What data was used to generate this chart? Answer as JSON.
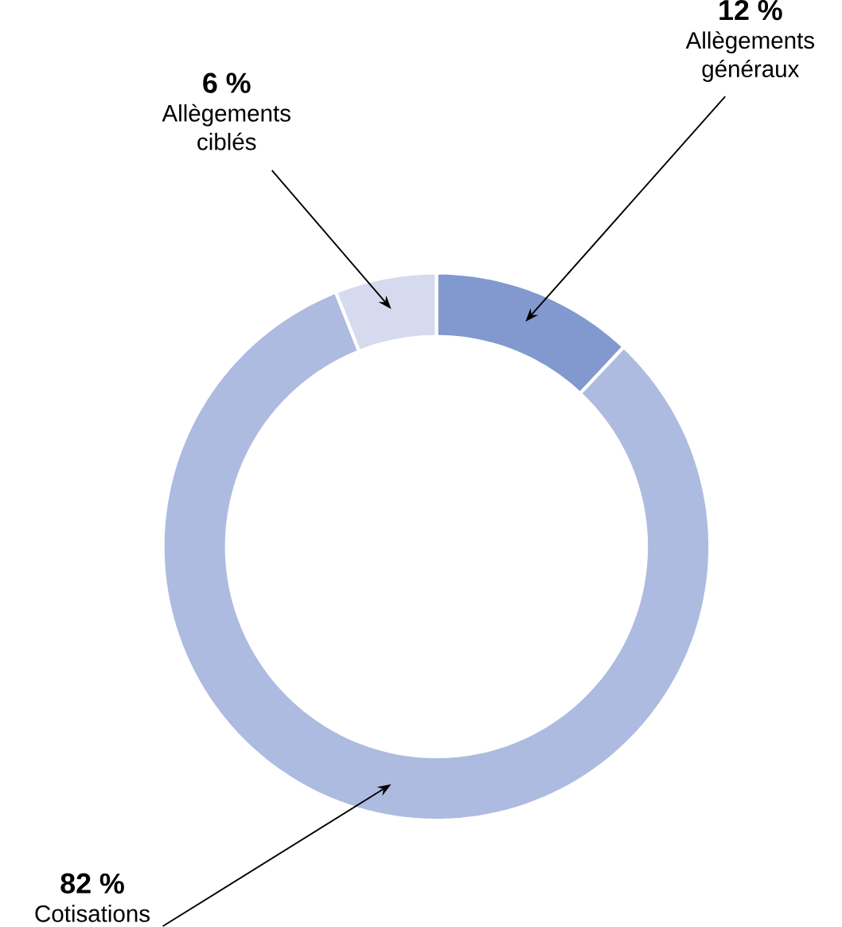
{
  "chart_data": {
    "type": "donut",
    "categories": [
      "Allègements généraux",
      "Cotisations",
      "Allègements ciblés"
    ],
    "values": [
      12,
      82,
      6
    ],
    "colors": [
      "#8199cf",
      "#aebbe0",
      "#d5daee"
    ],
    "value_labels": [
      "12 %",
      "82 %",
      "6 %"
    ]
  }
}
